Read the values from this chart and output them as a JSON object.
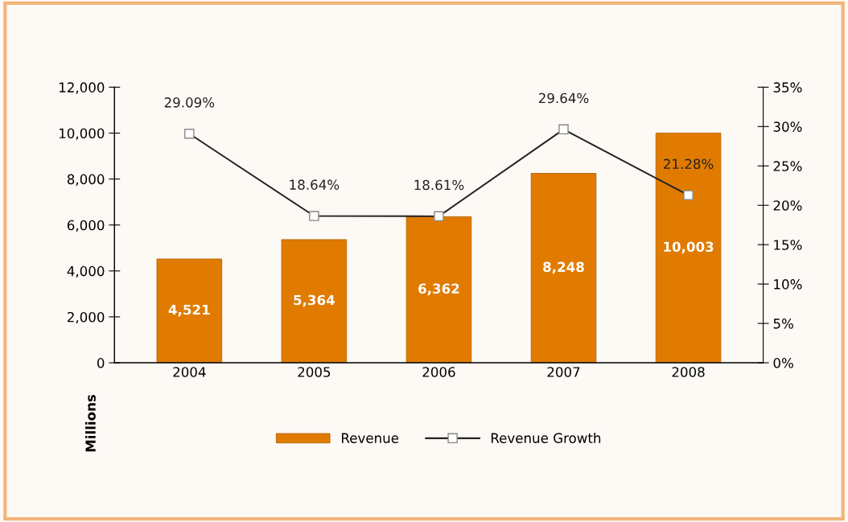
{
  "chart_data": {
    "type": "bar",
    "categories": [
      "2004",
      "2005",
      "2006",
      "2007",
      "2008"
    ],
    "series": [
      {
        "name": "Revenue",
        "color": "#e07b00",
        "values": [
          4521,
          5364,
          6362,
          8248,
          10003
        ],
        "value_labels": [
          "4,521",
          "5,364",
          "6,362",
          "8,248",
          "10,003"
        ]
      },
      {
        "name": "Revenue Growth",
        "type": "line",
        "axis": "y2",
        "color": "#222222",
        "marker": "square",
        "values": [
          29.09,
          18.64,
          18.61,
          29.64,
          21.28
        ],
        "value_labels": [
          "29.09%",
          "18.64%",
          "18.61%",
          "29.64%",
          "21.28%"
        ]
      }
    ],
    "ylim": [
      0,
      12000
    ],
    "yticks": [
      {
        "value": 0,
        "label": "0"
      },
      {
        "value": 2000,
        "label": "2,000"
      },
      {
        "value": 4000,
        "label": "4,000"
      },
      {
        "value": 6000,
        "label": "6,000"
      },
      {
        "value": 8000,
        "label": "8,000"
      },
      {
        "value": 10000,
        "label": "10,000"
      },
      {
        "value": 12000,
        "label": "12,000"
      }
    ],
    "y2lim": [
      0,
      35
    ],
    "y2ticks": [
      {
        "value": 0,
        "label": "0%"
      },
      {
        "value": 5,
        "label": "5%"
      },
      {
        "value": 10,
        "label": "10%"
      },
      {
        "value": 15,
        "label": "15%"
      },
      {
        "value": 20,
        "label": "20%"
      },
      {
        "value": 25,
        "label": "25%"
      },
      {
        "value": 30,
        "label": "30%"
      },
      {
        "value": 35,
        "label": "35%"
      }
    ],
    "ylabel": "Millions",
    "legend": "bottom",
    "grid": false
  }
}
